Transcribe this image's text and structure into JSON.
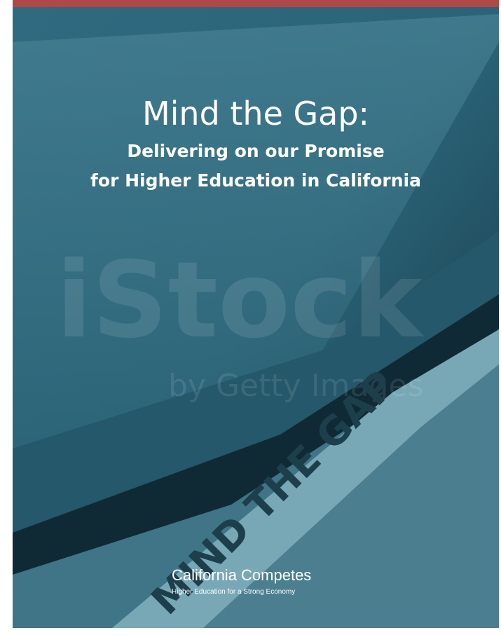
{
  "cover": {
    "title": "Mind the Gap:",
    "subtitle": [
      "Delivering on our Promise",
      "for Higher Education in California"
    ],
    "watermark": {
      "brand": "iStock",
      "byline": "by Getty Images"
    },
    "floor_marking": "MIND THE GAP",
    "logo": {
      "name": "California Competes",
      "tagline": "Higher Education for a Strong Economy"
    }
  }
}
